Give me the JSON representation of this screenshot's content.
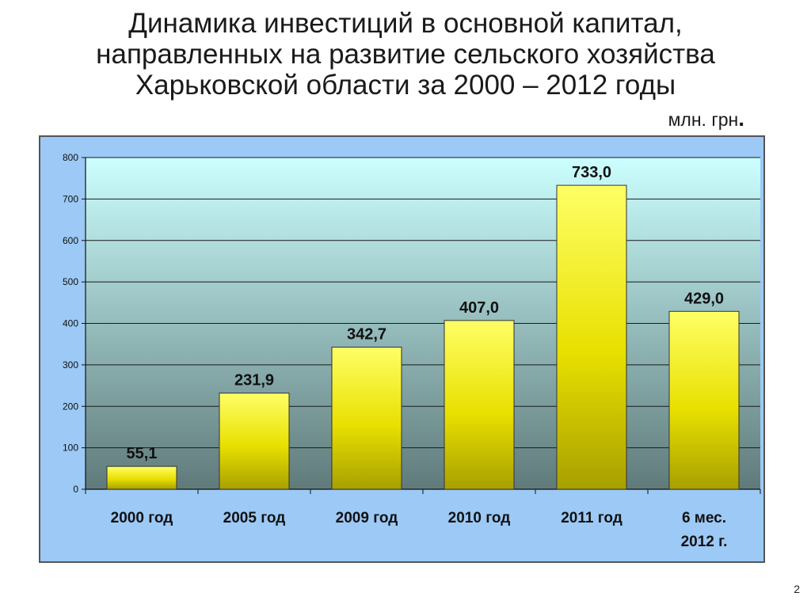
{
  "title_lines": [
    "Динамика инвестиций в основной капитал,",
    "направленных на развитие сельского хозяйства",
    "Харьковской области за 2000 – 2012 годы"
  ],
  "unit": "млн. грн",
  "unit_dot": ".",
  "page_number": "2",
  "colors": {
    "frame_bg": "#9cc9f5",
    "plot_top": "#ccffff",
    "plot_bottom": "#607a7a",
    "bar_light": "#ffff66",
    "bar_dark": "#a8a000",
    "gridline": "#1a1a1a"
  },
  "chart_data": {
    "type": "bar",
    "title": "",
    "xlabel": "",
    "ylabel": "",
    "categories": [
      [
        "2000 год"
      ],
      [
        "2005 год"
      ],
      [
        "2009 год"
      ],
      [
        "2010 год"
      ],
      [
        "2011 год"
      ],
      [
        "6  мес.",
        "2012 г."
      ]
    ],
    "values": [
      55.1,
      231.9,
      342.7,
      407.0,
      733.0,
      429.0
    ],
    "data_labels": [
      "55,1",
      "231,9",
      "342,7",
      "407,0",
      "733,0",
      "429,0"
    ],
    "ylim": [
      0,
      800
    ],
    "yticks": [
      0,
      100,
      200,
      300,
      400,
      500,
      600,
      700,
      800
    ],
    "grid": true,
    "legend": "none"
  }
}
